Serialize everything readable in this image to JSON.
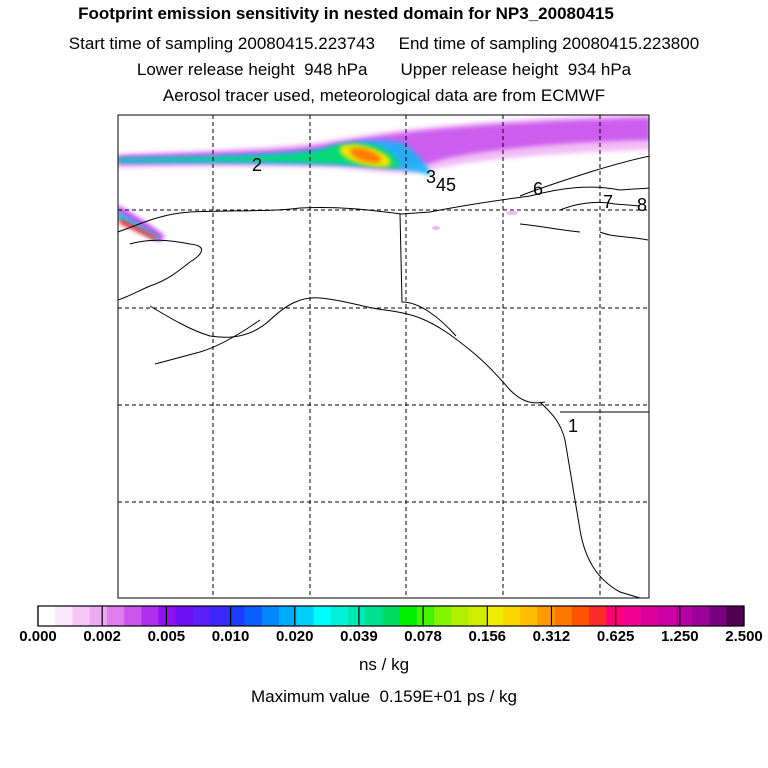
{
  "header": {
    "title": "Footprint emission sensitivity in nested domain for NP3_20080415",
    "sampling_line": "Start time of sampling 20080415.223743     End time of sampling 20080415.223800",
    "height_line": "Lower release height  948 hPa       Upper release height  934 hPa",
    "tracer_line": "Aerosol tracer used, meteorological data are from ECMWF"
  },
  "map": {
    "trajectory_labels": [
      "2",
      "3",
      "4",
      "5",
      "6",
      "7",
      "8",
      "1"
    ]
  },
  "colorbar": {
    "ticks": [
      "0.000",
      "0.002",
      "0.005",
      "0.010",
      "0.020",
      "0.039",
      "0.078",
      "0.156",
      "0.312",
      "0.625",
      "1.250",
      "2.500"
    ],
    "colors": [
      "#ffffff",
      "#fce6fc",
      "#f6c7f6",
      "#ecaaf0",
      "#df7fed",
      "#cc55ee",
      "#b02ef0",
      "#9010f2",
      "#7010f5",
      "#5a20f8",
      "#3d28fa",
      "#1c3cfc",
      "#0a60fc",
      "#0088fc",
      "#00acfc",
      "#00d0f8",
      "#00fcfc",
      "#00f0d8",
      "#00e8b4",
      "#00e090",
      "#00dc64",
      "#00f000",
      "#44f400",
      "#84f400",
      "#b0f000",
      "#d0ec00",
      "#f0ec00",
      "#fcd800",
      "#fcbc00",
      "#fc9c00",
      "#fc7800",
      "#fc5400",
      "#fc2c2c",
      "#fc0078",
      "#f00090",
      "#dc009c",
      "#cc00a4",
      "#b400a0",
      "#9c0098",
      "#780080",
      "#500050"
    ],
    "units": "ns / kg"
  },
  "footer": {
    "max_value": "Maximum value  0.159E+01 ps / kg"
  }
}
